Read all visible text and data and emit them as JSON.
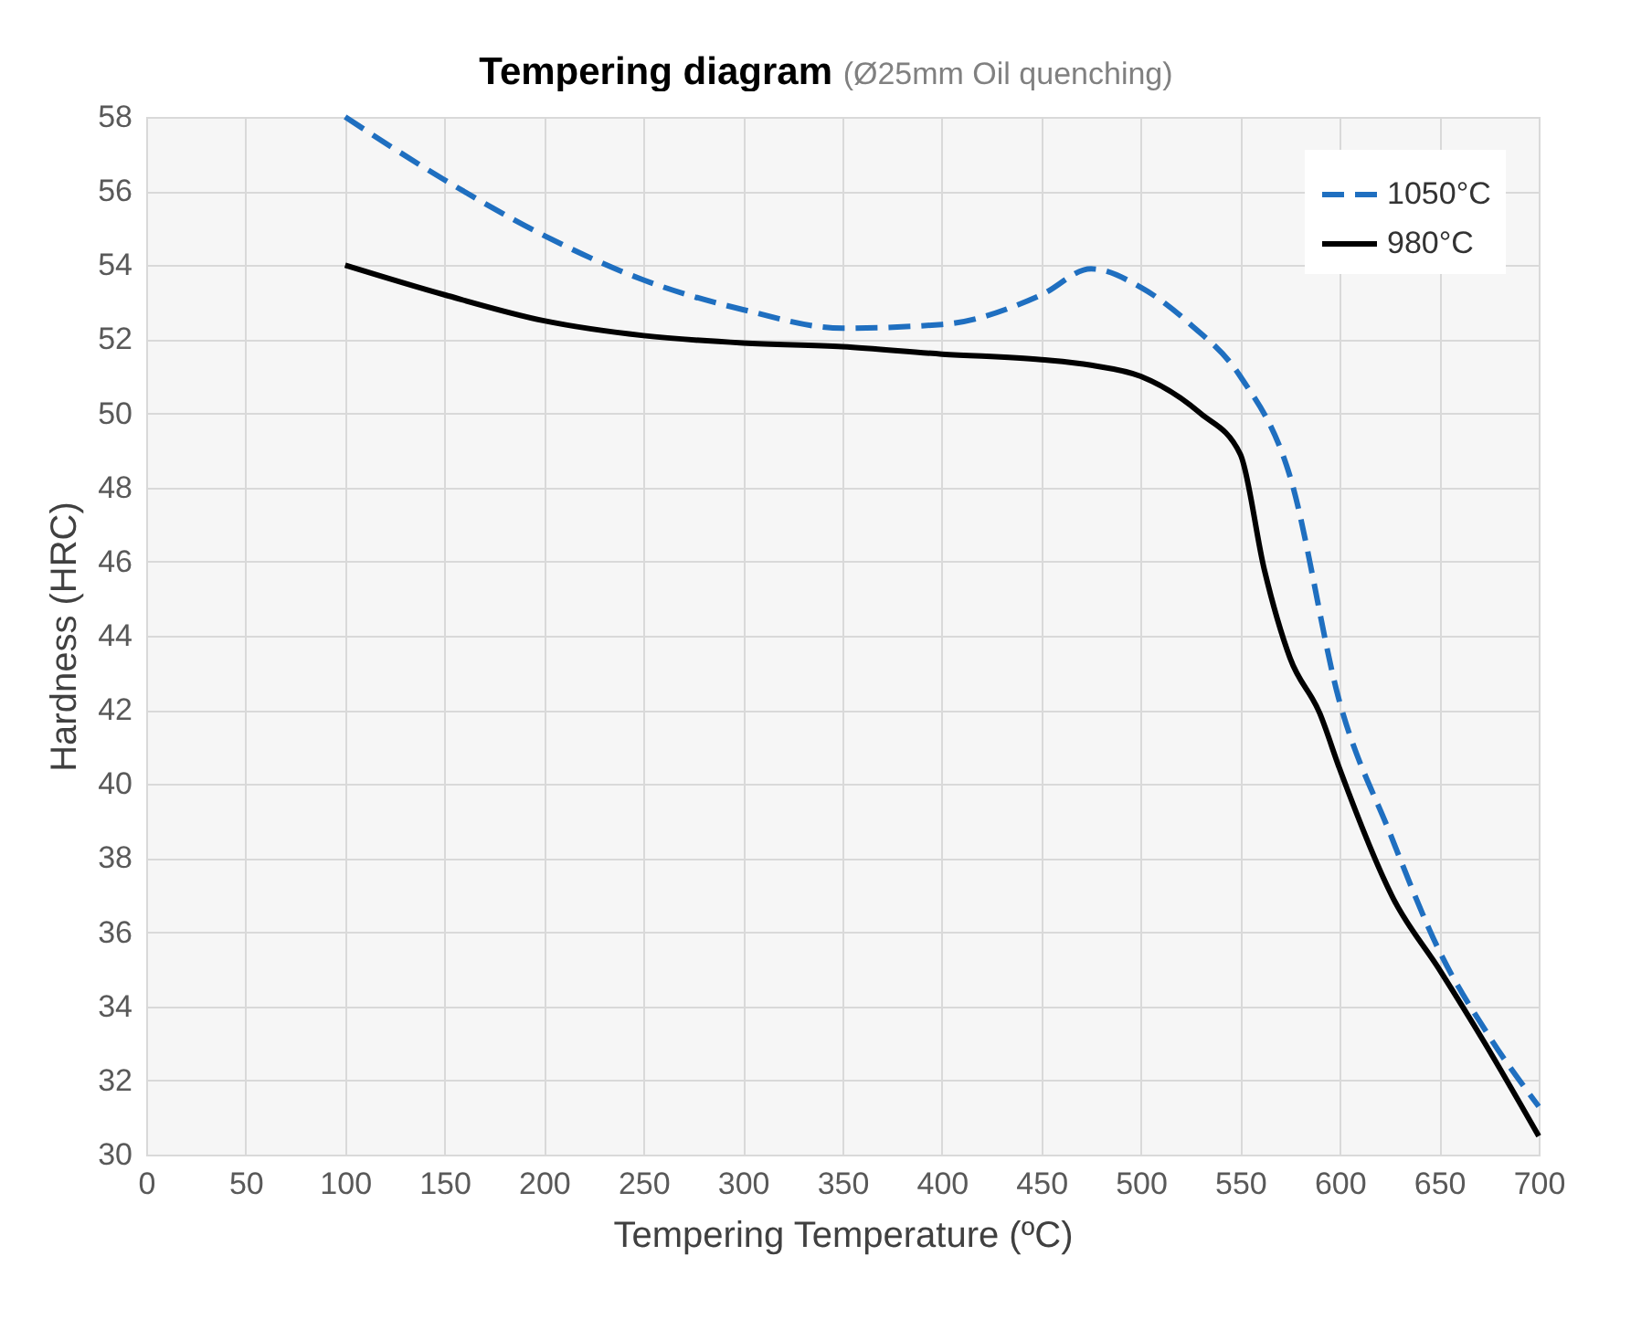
{
  "chart_data": {
    "type": "line",
    "title": "Tempering diagram",
    "subtitle": "(Ø25mm Oil quenching)",
    "xlabel": "Tempering Temperature (ºC)",
    "ylabel": "Hardness (HRC)",
    "xlim": [
      0,
      700
    ],
    "xticks": [
      0,
      50,
      100,
      150,
      200,
      250,
      300,
      350,
      400,
      450,
      500,
      550,
      600,
      650,
      700
    ],
    "ylim": [
      30,
      58
    ],
    "yticks": [
      30,
      32,
      34,
      36,
      38,
      40,
      42,
      44,
      46,
      48,
      50,
      52,
      54,
      56,
      58
    ],
    "grid": true,
    "legend": "top right",
    "marker": "none",
    "series": [
      {
        "name": "1050°C",
        "color": "#1f6fc0",
        "line_style": "dashed",
        "x": [
          100,
          150,
          200,
          250,
          300,
          350,
          400,
          450,
          475,
          500,
          525,
          550,
          575,
          600,
          625,
          650,
          675,
          700
        ],
        "values": [
          58,
          56.3,
          54.8,
          53.6,
          52.8,
          52.3,
          52.4,
          53.2,
          53.9,
          53.4,
          52.4,
          51,
          48.3,
          42.2,
          38.7,
          35.5,
          33.2,
          31.3
        ]
      },
      {
        "name": "980°C",
        "color": "#000000",
        "line_style": "solid",
        "x": [
          100,
          150,
          200,
          250,
          300,
          350,
          400,
          450,
          475,
          500,
          530,
          550,
          562,
          575,
          590,
          600,
          627,
          650,
          673,
          700
        ],
        "values": [
          54,
          53.2,
          52.5,
          52.1,
          51.9,
          51.8,
          51.6,
          51.45,
          51.3,
          51,
          50,
          48.9,
          45.8,
          43.4,
          41.9,
          40.4,
          36.9,
          35,
          33,
          30.5
        ]
      }
    ]
  }
}
